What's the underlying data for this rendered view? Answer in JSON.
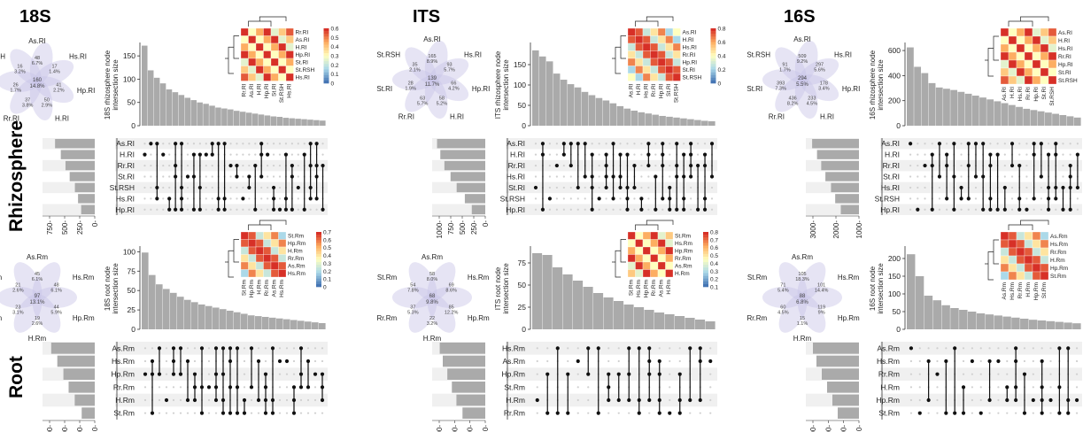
{
  "column_titles": [
    "18S",
    "ITS",
    "16S"
  ],
  "row_titles": [
    "Rhizosphere",
    "Root"
  ],
  "chart_data": [
    {
      "type": "bar",
      "marker": "18S",
      "compartment": "rhizosphere",
      "ylabel": "18S rhizosphere node intersection size",
      "ylim": [
        0,
        175
      ],
      "yticks": [
        0,
        50,
        100,
        150
      ],
      "values": [
        172,
        119,
        103,
        91,
        78,
        72,
        66,
        60,
        55,
        50,
        47,
        43,
        39,
        37,
        35,
        32,
        30,
        28,
        26,
        24,
        22,
        20,
        19,
        17,
        16,
        15,
        14,
        13,
        12,
        11
      ],
      "sets": [
        "As.RI",
        "H.RI",
        "Rr.RI",
        "St.RI",
        "St.RSH",
        "Hs.RI",
        "Hp.RI"
      ],
      "set_sizes": [
        760,
        650,
        560,
        480,
        380,
        320,
        260
      ],
      "set_size_ticks": [
        "750",
        "500",
        "250",
        "0"
      ],
      "set_size_max": 1000,
      "venn": {
        "labels": [
          "As.RI",
          "Hs.RI",
          "Hp.RI",
          "H.RI",
          "Rr.RI",
          "St.RI",
          "St.RSH"
        ],
        "counts": [
          "48\n6.7%",
          "17\n1.4%",
          "41\n2.2%",
          "50\n2.9%",
          "37\n3.8%",
          "26\n1.7%",
          "16\n3.2%"
        ],
        "center": "160\n14.8%"
      },
      "heatmap": {
        "labels": [
          "Rr.RI",
          "As.RI",
          "H.RI",
          "Hp.RI",
          "St.RI",
          "St.RSH",
          "Hs.RI"
        ],
        "scale_ticks": [
          "0.6",
          "0.5",
          "0.4",
          "0.3",
          "0.2",
          "0.1",
          "0"
        ],
        "max": 0.65
      }
    },
    {
      "type": "bar",
      "marker": "ITS",
      "compartment": "rhizosphere",
      "ylabel": "ITS rhizosphere node intersection size",
      "ylim": [
        0,
        200
      ],
      "yticks": [
        0,
        50,
        100,
        150
      ],
      "values": [
        185,
        170,
        158,
        128,
        113,
        102,
        94,
        83,
        75,
        68,
        62,
        55,
        48,
        42,
        37,
        33,
        30,
        27,
        24,
        22,
        20,
        18,
        16,
        14,
        12,
        11
      ],
      "sets": [
        "As.RI",
        "H.RI",
        "Rr.RI",
        "Hs.RI",
        "St.RI",
        "St.RSH",
        "Hp.RI"
      ],
      "set_sizes": [
        1180,
        1100,
        1000,
        850,
        700,
        500,
        330
      ],
      "set_size_ticks": [
        "1000",
        "750",
        "500",
        "250",
        "0"
      ],
      "set_size_max": 1300,
      "venn": {
        "labels": [
          "As.RI",
          "Hs.RI",
          "Hp.RI",
          "H.RI",
          "Rr.RI",
          "St.RI",
          "St.RSH"
        ],
        "counts": [
          "165\n8.9%",
          "93\n5.7%",
          "66\n4.2%",
          "58\n5.2%",
          "63\n5.7%",
          "28\n1.9%",
          "35\n2.1%"
        ],
        "center": "139\n11.7%"
      },
      "heatmap": {
        "labels": [
          "As.RI",
          "H.RI",
          "Hs.RI",
          "Rr.RI",
          "Hp.RI",
          "St.RI",
          "St.RSH"
        ],
        "scale_ticks": [
          "0.8",
          "0.6",
          "0.4",
          "0.2",
          "0"
        ],
        "max": 0.85
      }
    },
    {
      "type": "bar",
      "marker": "16S",
      "compartment": "rhizosphere",
      "ylabel": "16S rhizosphere node intersection size",
      "ylim": [
        0,
        650
      ],
      "yticks": [
        0,
        200,
        400,
        600
      ],
      "values": [
        625,
        470,
        420,
        340,
        305,
        295,
        285,
        270,
        255,
        240,
        225,
        210,
        195,
        180,
        165,
        150,
        135,
        125,
        115,
        105,
        95,
        85,
        75,
        65
      ],
      "sets": [
        "As.RI",
        "H.RI",
        "Rr.RI",
        "St.RI",
        "Hs.RI",
        "St.RSH",
        "Hp.RI"
      ],
      "set_sizes": [
        3350,
        3000,
        2700,
        2400,
        2000,
        1700,
        1300
      ],
      "set_size_ticks": [
        "3000",
        "2000",
        "1000"
      ],
      "set_size_max": 3800,
      "venn": {
        "labels": [
          "As.RI",
          "Hs.RI",
          "Hp.RI",
          "H.RI",
          "Rr.RI",
          "St.RI",
          "St.RSH"
        ],
        "counts": [
          "509\n9.2%",
          "297\n5.6%",
          "178\n3.4%",
          "233\n4.5%",
          "436\n8.2%",
          "393\n7.3%",
          "91\n1.7%"
        ],
        "center": "294\n5.5%"
      },
      "heatmap": {
        "labels": [
          "As.RI",
          "H.RI",
          "Hs.RI",
          "Rr.RI",
          "Hp.RI",
          "St.RI",
          "St.RSH"
        ],
        "scale_ticks": [],
        "max": 0.8
      }
    },
    {
      "type": "bar",
      "marker": "18S",
      "compartment": "root",
      "ylabel": "18S root node intersection size",
      "ylim": [
        0,
        105
      ],
      "yticks": [
        0,
        25,
        50,
        75,
        100
      ],
      "values": [
        99,
        70,
        58,
        52,
        47,
        42,
        38,
        35,
        32,
        30,
        28,
        26,
        24,
        22,
        20,
        18,
        17,
        16,
        15,
        14,
        13,
        12,
        11,
        10,
        9,
        8
      ],
      "sets": [
        "As.Rm",
        "Hs.Rm",
        "Hp.Rm",
        "Rr.Rm",
        "H.Rm",
        "St.Rm"
      ],
      "set_sizes": [
        500,
        430,
        360,
        300,
        230,
        150
      ],
      "set_size_ticks": [
        "600",
        "400",
        "200",
        "0"
      ],
      "set_size_max": 600,
      "venn": {
        "labels": [
          "As.Rm",
          "Hs.Rm",
          "Hp.Rm",
          "H.Rm",
          "Rr.Rm",
          "St.Rm"
        ],
        "counts": [
          "45\n6.1%",
          "48\n6.1%",
          "44\n5.9%",
          "19\n2.6%",
          "23\n3.1%",
          "21\n2.6%"
        ],
        "center": "97\n13.1%"
      },
      "heatmap": {
        "labels": [
          "St.Rm",
          "Hp.Rm",
          "H.Rm",
          "Rr.Rm",
          "As.Rm",
          "Hs.Rm"
        ],
        "scale_ticks": [
          "0.7",
          "0.6",
          "0.5",
          "0.4",
          "0.3",
          "0.2",
          "0.1",
          "0"
        ],
        "max": 0.72
      }
    },
    {
      "type": "bar",
      "marker": "ITS",
      "compartment": "root",
      "ylabel": "ITS root node intersection size",
      "ylim": [
        0,
        92
      ],
      "yticks": [
        0,
        25,
        50,
        75
      ],
      "values": [
        86,
        84,
        70,
        62,
        55,
        48,
        41,
        36,
        32,
        28,
        25,
        22,
        19,
        17,
        15,
        13,
        11,
        9
      ],
      "sets": [
        "Hs.Rm",
        "As.Rm",
        "Hp.Rm",
        "St.Rm",
        "H.Rm",
        "Rr.Rm"
      ],
      "set_sizes": [
        600,
        560,
        500,
        440,
        380,
        300
      ],
      "set_size_ticks": [
        "600",
        "400",
        "200",
        "0"
      ],
      "set_size_max": 700,
      "venn": {
        "labels": [
          "As.Rm",
          "Hs.Rm",
          "Hp.Rm",
          "H.Rm",
          "Rr.Rm",
          "St.Rm"
        ],
        "counts": [
          "58\n8.0%",
          "69\n8.6%",
          "85\n12.2%",
          "22\n3.2%",
          "37\n5.3%",
          "54\n7.8%"
        ],
        "center": "68\n9.8%"
      },
      "heatmap": {
        "labels": [
          "St.Rm",
          "Hs.Rm",
          "Hp.Rm",
          "Rr.Rm",
          "As.Rm",
          "H.Rm"
        ],
        "scale_ticks": [
          "0.8",
          "0.7",
          "0.6",
          "0.5",
          "0.4",
          "0.3",
          "0.2",
          "0.1"
        ],
        "max": 0.82
      }
    },
    {
      "type": "bar",
      "marker": "16S",
      "compartment": "root",
      "ylabel": "16S root node intersection size",
      "ylim": [
        0,
        230
      ],
      "yticks": [
        0,
        50,
        100,
        150,
        200
      ],
      "values": [
        212,
        150,
        95,
        82,
        68,
        60,
        55,
        50,
        45,
        42,
        39,
        36,
        33,
        30,
        27,
        25,
        23,
        21,
        19,
        17
      ],
      "sets": [
        "As.Rm",
        "Hs.Rm",
        "Rr.Rm",
        "H.Rm",
        "Hp.Rm",
        "St.Rm"
      ],
      "set_sizes": [
        1300,
        1200,
        1050,
        900,
        750,
        600
      ],
      "set_size_ticks": [
        "600",
        "400",
        "200",
        "0"
      ],
      "set_size_max": 1500,
      "venn": {
        "labels": [
          "As.Rm",
          "Hs.Rm",
          "Hp.Rm",
          "H.Rm",
          "Rr.Rm",
          "St.Rm"
        ],
        "counts": [
          "105\n18.3%",
          "101\n14.4%",
          "119\n9%",
          "15\n1.1%",
          "60\n4.5%",
          "71\n5.4%"
        ],
        "center": "88\n6.8%"
      },
      "heatmap": {
        "labels": [
          "As.Rm",
          "Hs.Rm",
          "Rr.Rm",
          "H.Rm",
          "Hp.Rm",
          "St.Rm"
        ],
        "scale_ticks": [],
        "max": 0.8
      }
    }
  ]
}
